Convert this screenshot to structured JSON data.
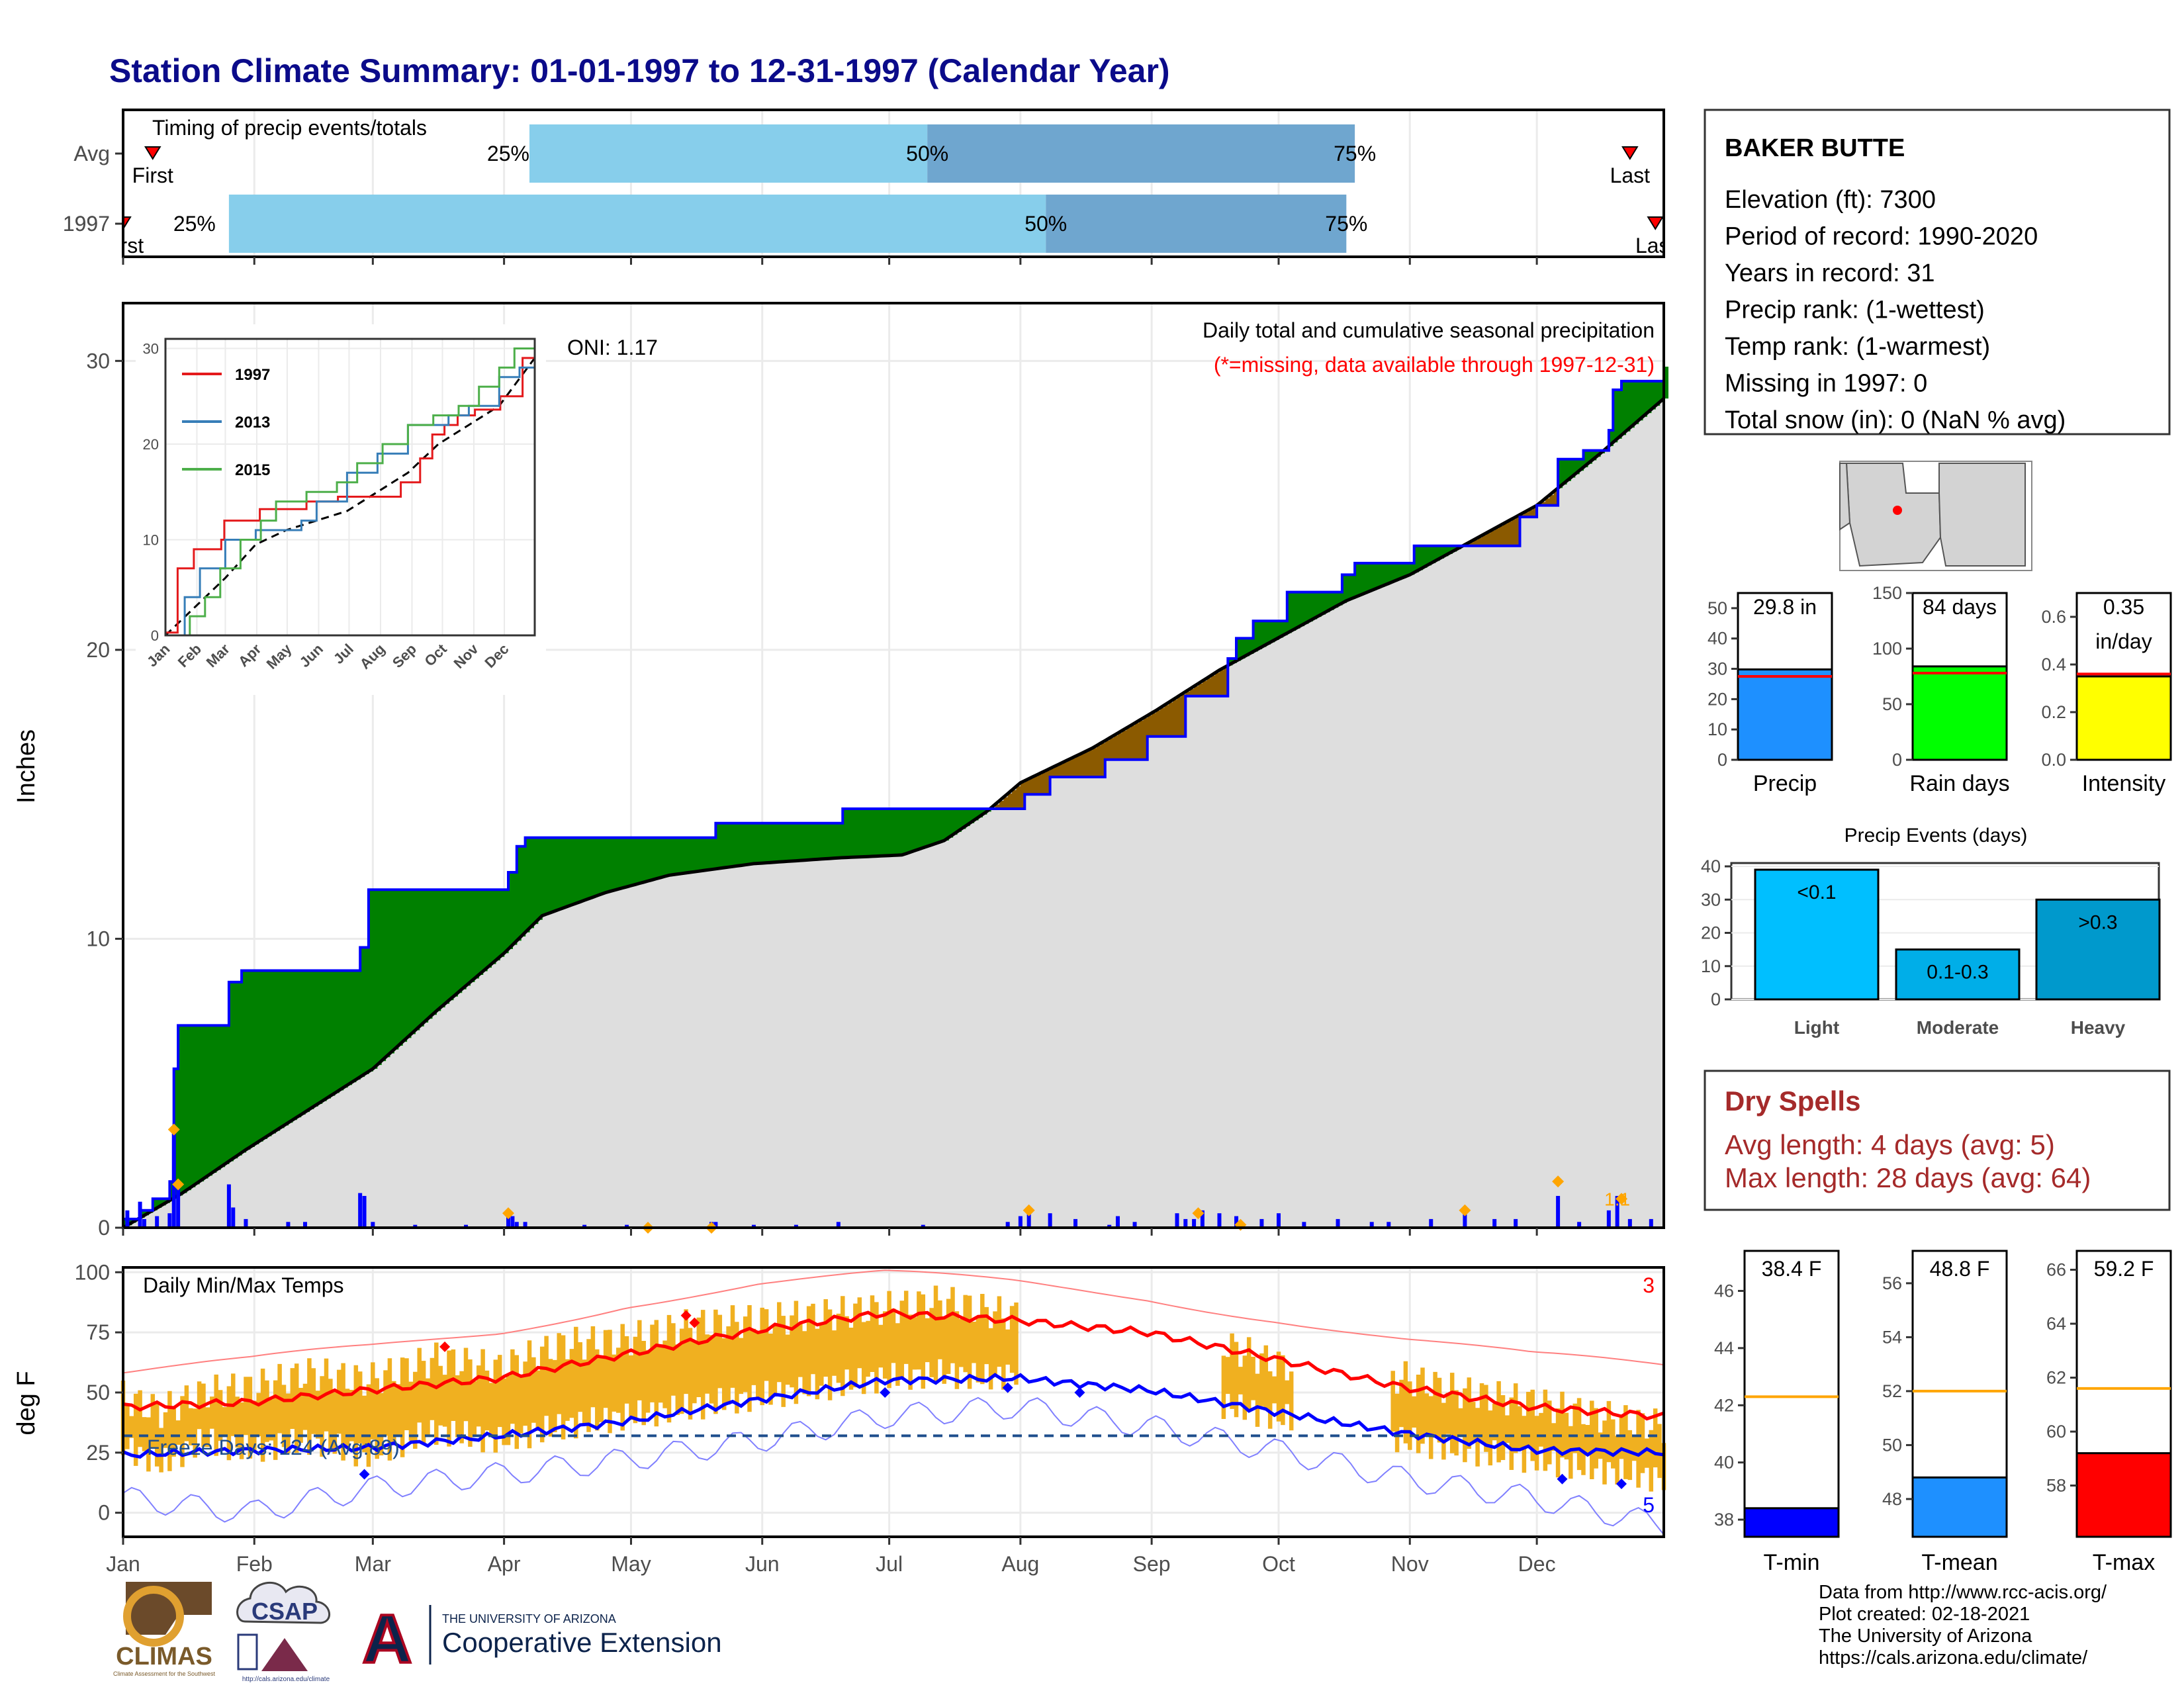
{
  "title": "Station Climate Summary: 01-01-1997 to 12-31-1997 (Calendar Year)",
  "colors": {
    "title": "#0b0b8a",
    "wet": "#008000",
    "dry": "#8b5a00",
    "climo": "#dedede",
    "precip_bar": "#0000ff",
    "light_blue": "#87ceeb",
    "mid_blue": "#6fa6cf",
    "tmax": "#ff0000",
    "tmin": "#0000ff",
    "temp_band": "#f0b020",
    "dry_spell_text": "#a52a2a"
  },
  "months": [
    "Jan",
    "Feb",
    "Mar",
    "Apr",
    "May",
    "Jun",
    "Jul",
    "Aug",
    "Sep",
    "Oct",
    "Nov",
    "Dec"
  ],
  "timing": {
    "label": "Timing of precip events/totals",
    "rows": [
      {
        "name": "Avg",
        "first_label": "First",
        "last_label": "Last",
        "first_day": 8,
        "p25": 97,
        "p50": 191,
        "p75": 292,
        "last_day": 357,
        "pct_labels": [
          "25%",
          "50%",
          "75%"
        ]
      },
      {
        "name": "1997",
        "first_label": "First",
        "last_label": "Last",
        "first_day": 1,
        "p25": 26,
        "p50": 219,
        "p75": 290,
        "last_day": 363,
        "pct_labels": [
          "25%",
          "50%",
          "75%"
        ]
      }
    ]
  },
  "precip": {
    "ylabel": "Inches",
    "ylim": [
      0,
      32
    ],
    "yticks": [
      0,
      10,
      20,
      30
    ],
    "annotation_title": "Daily total and cumulative seasonal precipitation",
    "annotation_missing": "(*=missing, data available through 1997-12-31)",
    "oni": "ONI: 1.17",
    "top_label": "1.1",
    "cumulative_1997": [
      [
        1,
        0.3
      ],
      [
        5,
        0.6
      ],
      [
        8,
        1.0
      ],
      [
        12,
        1.6
      ],
      [
        13,
        5.5
      ],
      [
        14,
        7.0
      ],
      [
        25,
        7.0
      ],
      [
        26,
        8.5
      ],
      [
        29,
        8.9
      ],
      [
        56,
        8.9
      ],
      [
        57,
        9.7
      ],
      [
        59,
        11.7
      ],
      [
        91,
        11.7
      ],
      [
        92,
        12.3
      ],
      [
        94,
        13.2
      ],
      [
        96,
        13.5
      ],
      [
        140,
        13.5
      ],
      [
        141,
        14.0
      ],
      [
        170,
        14.0
      ],
      [
        171,
        14.5
      ],
      [
        208,
        14.5
      ],
      [
        214,
        15.0
      ],
      [
        220,
        15.6
      ],
      [
        233,
        16.2
      ],
      [
        243,
        17.0
      ],
      [
        252,
        18.4
      ],
      [
        262,
        19.7
      ],
      [
        264,
        20.4
      ],
      [
        268,
        21.0
      ],
      [
        275,
        21.0
      ],
      [
        276,
        22.0
      ],
      [
        288,
        22.0
      ],
      [
        289,
        22.6
      ],
      [
        292,
        23.0
      ],
      [
        305,
        23.0
      ],
      [
        306,
        23.6
      ],
      [
        330,
        23.6
      ],
      [
        331,
        24.6
      ],
      [
        335,
        25.0
      ],
      [
        340,
        26.6
      ],
      [
        346,
        26.9
      ],
      [
        352,
        27.6
      ],
      [
        353,
        29.0
      ],
      [
        355,
        29.3
      ],
      [
        365,
        29.8
      ]
    ],
    "cumulative_avg": [
      [
        1,
        0
      ],
      [
        15,
        1.2
      ],
      [
        30,
        2.7
      ],
      [
        45,
        4.1
      ],
      [
        60,
        5.5
      ],
      [
        75,
        7.5
      ],
      [
        91,
        9.5
      ],
      [
        100,
        10.8
      ],
      [
        115,
        11.6
      ],
      [
        130,
        12.2
      ],
      [
        150,
        12.6
      ],
      [
        170,
        12.8
      ],
      [
        185,
        12.9
      ],
      [
        195,
        13.4
      ],
      [
        205,
        14.4
      ],
      [
        213,
        15.4
      ],
      [
        230,
        16.6
      ],
      [
        245,
        17.9
      ],
      [
        260,
        19.3
      ],
      [
        275,
        20.5
      ],
      [
        290,
        21.7
      ],
      [
        305,
        22.6
      ],
      [
        320,
        23.8
      ],
      [
        335,
        25.0
      ],
      [
        350,
        26.8
      ],
      [
        365,
        28.7
      ]
    ],
    "daily": [
      [
        2,
        0.6
      ],
      [
        5,
        0.9
      ],
      [
        6,
        0.3
      ],
      [
        9,
        0.4
      ],
      [
        12,
        0.5
      ],
      [
        13,
        3.4
      ],
      [
        14,
        1.5
      ],
      [
        26,
        1.5
      ],
      [
        27,
        0.7
      ],
      [
        30,
        0.3
      ],
      [
        40,
        0.2
      ],
      [
        44,
        0.2
      ],
      [
        57,
        1.2
      ],
      [
        58,
        1.1
      ],
      [
        60,
        0.2
      ],
      [
        70,
        0.1
      ],
      [
        82,
        0.1
      ],
      [
        92,
        0.5
      ],
      [
        93,
        0.4
      ],
      [
        94,
        0.2
      ],
      [
        96,
        0.2
      ],
      [
        110,
        0.1
      ],
      [
        120,
        0.1
      ],
      [
        140,
        0.2
      ],
      [
        141,
        0.2
      ],
      [
        150,
        0.1
      ],
      [
        160,
        0.1
      ],
      [
        170,
        0.2
      ],
      [
        190,
        0.1
      ],
      [
        210,
        0.2
      ],
      [
        213,
        0.4
      ],
      [
        215,
        0.6
      ],
      [
        220,
        0.5
      ],
      [
        226,
        0.3
      ],
      [
        234,
        0.1
      ],
      [
        236,
        0.4
      ],
      [
        240,
        0.2
      ],
      [
        250,
        0.5
      ],
      [
        252,
        0.3
      ],
      [
        254,
        0.3
      ],
      [
        256,
        0.6
      ],
      [
        260,
        0.5
      ],
      [
        264,
        0.4
      ],
      [
        270,
        0.3
      ],
      [
        274,
        0.5
      ],
      [
        280,
        0.2
      ],
      [
        288,
        0.3
      ],
      [
        296,
        0.2
      ],
      [
        300,
        0.2
      ],
      [
        310,
        0.3
      ],
      [
        318,
        0.6
      ],
      [
        325,
        0.3
      ],
      [
        330,
        0.3
      ],
      [
        340,
        1.1
      ],
      [
        345,
        0.2
      ],
      [
        352,
        0.6
      ],
      [
        354,
        1.1
      ],
      [
        357,
        0.3
      ],
      [
        362,
        0.3
      ]
    ],
    "markers": [
      [
        13,
        3.4
      ],
      [
        14,
        1.5
      ],
      [
        92,
        0.5
      ],
      [
        125,
        0.0
      ],
      [
        140,
        0.0
      ],
      [
        215,
        0.6
      ],
      [
        255,
        0.5
      ],
      [
        265,
        0.1
      ],
      [
        318,
        0.6
      ],
      [
        340,
        1.6
      ],
      [
        355,
        1.0
      ]
    ]
  },
  "inset": {
    "ylim": [
      0,
      31
    ],
    "yticks": [
      0,
      10,
      20,
      30
    ],
    "series": [
      {
        "name": "1997",
        "color": "#e41a1c",
        "values": [
          [
            1,
            0.3
          ],
          [
            13,
            7
          ],
          [
            29,
            9
          ],
          [
            56,
            10
          ],
          [
            59,
            12
          ],
          [
            94,
            13.2
          ],
          [
            140,
            14
          ],
          [
            171,
            14.5
          ],
          [
            208,
            14.5
          ],
          [
            233,
            16
          ],
          [
            252,
            18.5
          ],
          [
            264,
            21
          ],
          [
            276,
            22
          ],
          [
            289,
            23
          ],
          [
            306,
            23.6
          ],
          [
            331,
            25
          ],
          [
            353,
            29
          ],
          [
            365,
            30
          ]
        ]
      },
      {
        "name": "2013",
        "color": "#377eb8",
        "values": [
          [
            1,
            0
          ],
          [
            20,
            4
          ],
          [
            35,
            7
          ],
          [
            60,
            10
          ],
          [
            90,
            11
          ],
          [
            130,
            11
          ],
          [
            135,
            12
          ],
          [
            150,
            14
          ],
          [
            180,
            17
          ],
          [
            210,
            19
          ],
          [
            240,
            22
          ],
          [
            260,
            22
          ],
          [
            280,
            23
          ],
          [
            300,
            24
          ],
          [
            330,
            27
          ],
          [
            350,
            28
          ],
          [
            365,
            30
          ]
        ]
      },
      {
        "name": "2015",
        "color": "#4daf4a",
        "values": [
          [
            1,
            0
          ],
          [
            25,
            2
          ],
          [
            40,
            4
          ],
          [
            55,
            7
          ],
          [
            75,
            10
          ],
          [
            95,
            12
          ],
          [
            110,
            14
          ],
          [
            140,
            15
          ],
          [
            170,
            16
          ],
          [
            190,
            18
          ],
          [
            215,
            20
          ],
          [
            240,
            22
          ],
          [
            265,
            23
          ],
          [
            290,
            24
          ],
          [
            310,
            26
          ],
          [
            330,
            28
          ],
          [
            345,
            30
          ],
          [
            365,
            31
          ]
        ]
      }
    ],
    "avg": [
      [
        1,
        0
      ],
      [
        60,
        6
      ],
      [
        90,
        9.5
      ],
      [
        120,
        11
      ],
      [
        180,
        13
      ],
      [
        210,
        15
      ],
      [
        240,
        17
      ],
      [
        270,
        20
      ],
      [
        300,
        22
      ],
      [
        330,
        24
      ],
      [
        365,
        29
      ]
    ]
  },
  "temps": {
    "ylabel": "deg F",
    "title": "Daily Min/Max Temps",
    "ylim": [
      -10,
      102
    ],
    "yticks": [
      0,
      25,
      50,
      75,
      100
    ],
    "freeze_label": "Freeze Days: 124 (Avg:89)",
    "freeze_line": 32,
    "count_hot": "3",
    "count_cold": "5",
    "avg_tmax": [
      [
        1,
        44
      ],
      [
        31,
        46
      ],
      [
        59,
        51
      ],
      [
        90,
        56
      ],
      [
        120,
        66
      ],
      [
        151,
        76
      ],
      [
        181,
        83
      ],
      [
        212,
        80
      ],
      [
        243,
        75
      ],
      [
        273,
        64
      ],
      [
        304,
        52
      ],
      [
        334,
        44
      ],
      [
        365,
        40
      ]
    ],
    "avg_tmin": [
      [
        1,
        24
      ],
      [
        31,
        26
      ],
      [
        59,
        27
      ],
      [
        90,
        32
      ],
      [
        120,
        38
      ],
      [
        151,
        47
      ],
      [
        181,
        55
      ],
      [
        212,
        56
      ],
      [
        243,
        51
      ],
      [
        273,
        42
      ],
      [
        304,
        33
      ],
      [
        334,
        26
      ],
      [
        365,
        25
      ]
    ],
    "record_high": [
      [
        1,
        58
      ],
      [
        31,
        62
      ],
      [
        59,
        68
      ],
      [
        90,
        76
      ],
      [
        120,
        88
      ],
      [
        151,
        95
      ],
      [
        181,
        98
      ],
      [
        212,
        95
      ],
      [
        243,
        90
      ],
      [
        273,
        82
      ],
      [
        304,
        72
      ],
      [
        334,
        64
      ],
      [
        365,
        60
      ]
    ],
    "record_low": [
      [
        1,
        6
      ],
      [
        31,
        0
      ],
      [
        59,
        10
      ],
      [
        90,
        16
      ],
      [
        120,
        22
      ],
      [
        151,
        30
      ],
      [
        181,
        40
      ],
      [
        212,
        44
      ],
      [
        243,
        36
      ],
      [
        273,
        26
      ],
      [
        304,
        14
      ],
      [
        334,
        6
      ],
      [
        365,
        -5
      ]
    ],
    "obs_high": [
      [
        1,
        48
      ],
      [
        10,
        42
      ],
      [
        20,
        50
      ],
      [
        31,
        52
      ],
      [
        45,
        58
      ],
      [
        59,
        55
      ],
      [
        75,
        64
      ],
      [
        90,
        60
      ],
      [
        105,
        70
      ],
      [
        120,
        72
      ],
      [
        135,
        78
      ],
      [
        150,
        80
      ],
      [
        165,
        82
      ],
      [
        181,
        85
      ],
      [
        195,
        88
      ],
      [
        205,
        84
      ],
      [
        212,
        82
      ],
      [
        225,
        70
      ],
      [
        243,
        76
      ],
      [
        258,
        72
      ],
      [
        273,
        62
      ],
      [
        290,
        58
      ],
      [
        304,
        56
      ],
      [
        318,
        50
      ],
      [
        334,
        46
      ],
      [
        350,
        40
      ],
      [
        365,
        36
      ]
    ],
    "obs_low": [
      [
        1,
        28
      ],
      [
        10,
        20
      ],
      [
        20,
        30
      ],
      [
        31,
        26
      ],
      [
        45,
        30
      ],
      [
        59,
        24
      ],
      [
        75,
        34
      ],
      [
        90,
        30
      ],
      [
        105,
        36
      ],
      [
        120,
        40
      ],
      [
        135,
        44
      ],
      [
        150,
        48
      ],
      [
        165,
        52
      ],
      [
        181,
        56
      ],
      [
        195,
        58
      ],
      [
        205,
        56
      ],
      [
        212,
        58
      ],
      [
        225,
        46
      ],
      [
        243,
        50
      ],
      [
        258,
        46
      ],
      [
        273,
        40
      ],
      [
        290,
        36
      ],
      [
        304,
        30
      ],
      [
        318,
        26
      ],
      [
        334,
        22
      ],
      [
        350,
        18
      ],
      [
        365,
        14
      ]
    ],
    "gap": [
      213,
      260
    ],
    "gap2": [
      278,
      300
    ],
    "red_markers": [
      [
        77,
        69
      ],
      [
        134,
        82
      ],
      [
        136,
        79
      ]
    ],
    "blue_markers": [
      [
        58,
        16
      ],
      [
        181,
        50
      ],
      [
        210,
        52
      ],
      [
        227,
        50
      ],
      [
        341,
        14
      ],
      [
        355,
        12
      ]
    ]
  },
  "station": {
    "name": "BAKER BUTTE",
    "lines": [
      "Elevation (ft): 7300",
      "Period of record: 1990-2020",
      "Years in record: 31",
      "Precip rank:  (1-wettest)",
      "Temp rank:  (1-warmest)",
      "Missing in 1997: 0",
      "Total snow (in): 0 (NaN % avg)"
    ]
  },
  "summary_bars": [
    {
      "label": "Precip",
      "value_label": "29.8 in",
      "value": 29.8,
      "avg": 27.5,
      "ylim": [
        0,
        55
      ],
      "yticks": [
        0,
        10,
        20,
        30,
        40,
        50
      ],
      "color": "#1e90ff"
    },
    {
      "label": "Rain days",
      "value_label": "84 days",
      "value": 84,
      "avg": 78,
      "ylim": [
        0,
        150
      ],
      "yticks": [
        0,
        50,
        100,
        150
      ],
      "color": "#00ff00"
    },
    {
      "label": "Intensity",
      "value_label": "0.35\nin/day",
      "value": 0.35,
      "avg": 0.36,
      "ylim": [
        0,
        0.7
      ],
      "yticks": [
        0.0,
        0.2,
        0.4,
        0.6
      ],
      "color": "#ffff00"
    }
  ],
  "precip_events": {
    "title": "Precip Events (days)",
    "ylim": [
      0,
      41
    ],
    "yticks": [
      0,
      10,
      20,
      30,
      40
    ],
    "categories": [
      "Light",
      "Moderate",
      "Heavy"
    ],
    "bar_labels": [
      "<0.1",
      "0.1-0.3",
      ">0.3"
    ],
    "values": [
      39,
      15,
      30
    ],
    "colors": [
      "#00bfff",
      "#00aee8",
      "#0099cc"
    ]
  },
  "dry_spells": {
    "title": "Dry Spells",
    "lines": [
      "Avg length: 4 days (avg: 5)",
      "Max length: 28 days (avg: 64)"
    ]
  },
  "temp_bars": [
    {
      "label": "T-min",
      "value_label": "38.4 F",
      "value": 38.4,
      "avg": 42.3,
      "ylim": [
        37.4,
        47.4
      ],
      "yticks": [
        38,
        40,
        42,
        44,
        46
      ],
      "color": "#0000ff"
    },
    {
      "label": "T-mean",
      "value_label": "48.8 F",
      "value": 48.8,
      "avg": 52.0,
      "ylim": [
        46.6,
        57.2
      ],
      "yticks": [
        48,
        50,
        52,
        54,
        56
      ],
      "color": "#1e90ff"
    },
    {
      "label": "T-max",
      "value_label": "59.2 F",
      "value": 59.2,
      "avg": 61.6,
      "ylim": [
        56.1,
        66.7
      ],
      "yticks": [
        58,
        60,
        62,
        64,
        66
      ],
      "color": "#ff0000"
    }
  ],
  "credits": [
    "Data from http://www.rcc-acis.org/",
    "Plot created: 02-18-2021",
    "The University of Arizona",
    "https://cals.arizona.edu/climate/"
  ],
  "logos": {
    "climas": "CLIMAS",
    "climas_sub": "Climate Assessment for the Southwest",
    "csap": "CSAP",
    "csap_url": "http://cals.arizona.edu/climate",
    "ua_small": "THE UNIVERSITY OF ARIZONA",
    "ua_big": "Cooperative Extension",
    "ua_letter": "A"
  }
}
